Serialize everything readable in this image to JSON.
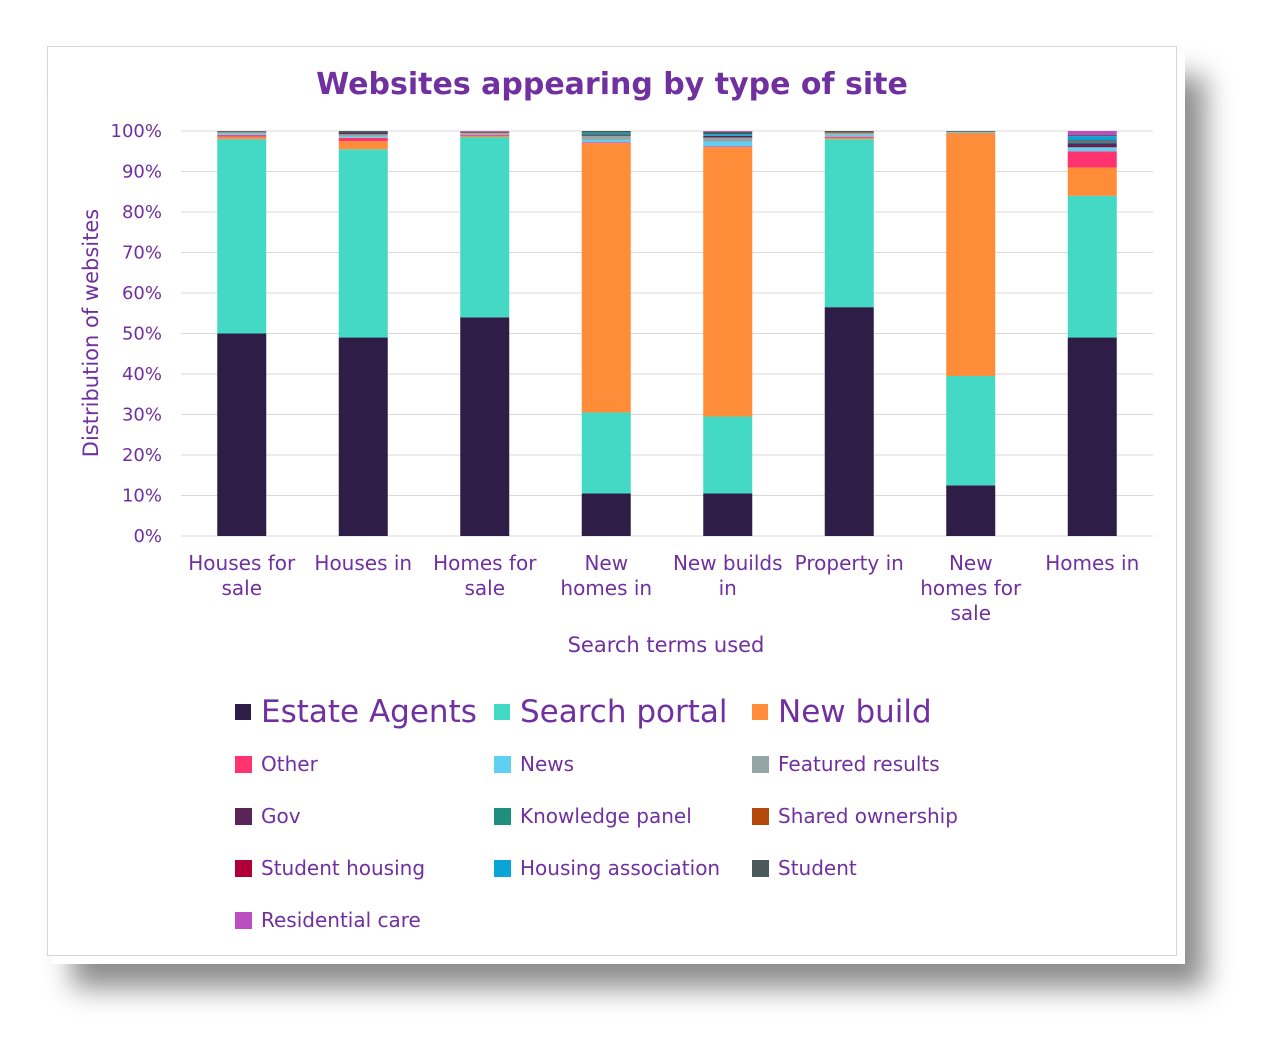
{
  "chart_data": {
    "type": "bar",
    "stacked": true,
    "title": "Websites appearing by type of site",
    "xlabel": "Search terms used",
    "ylabel": "Distribution of websites",
    "ylim": [
      0,
      100
    ],
    "yticks": [
      "0%",
      "10%",
      "20%",
      "30%",
      "40%",
      "50%",
      "60%",
      "70%",
      "80%",
      "90%",
      "100%"
    ],
    "grid": true,
    "legend_position": "bottom",
    "categories": [
      [
        "Houses for",
        "sale"
      ],
      [
        "Houses in"
      ],
      [
        "Homes for",
        "sale"
      ],
      [
        "New",
        "homes in"
      ],
      [
        "New builds",
        "in"
      ],
      [
        "Property in"
      ],
      [
        "New",
        "homes for",
        "sale"
      ],
      [
        "Homes in"
      ]
    ],
    "series": [
      {
        "name": "Estate Agents",
        "color": "#2e1d47",
        "legend": "big",
        "values": [
          50,
          49,
          54,
          10.5,
          10.5,
          56.5,
          12.5,
          49
        ]
      },
      {
        "name": "Search portal",
        "color": "#43d9c4",
        "legend": "big",
        "values": [
          48,
          46.5,
          44.5,
          20,
          19,
          41.5,
          27,
          35
        ]
      },
      {
        "name": "New build",
        "color": "#ff8c38",
        "legend": "big",
        "values": [
          0.6,
          2,
          0.3,
          66.5,
          66.5,
          0.3,
          60,
          7
        ]
      },
      {
        "name": "Other",
        "color": "#ff3370",
        "legend": "small",
        "values": [
          0.4,
          0.8,
          0.3,
          0.2,
          0.2,
          0.3,
          0,
          4
        ]
      },
      {
        "name": "News",
        "color": "#5fd0f2",
        "legend": "small",
        "values": [
          0.5,
          0.3,
          0.2,
          0.6,
          1.2,
          0.5,
          0.2,
          0.8
        ]
      },
      {
        "name": "Featured results",
        "color": "#95a5a6",
        "legend": "small",
        "values": [
          0.2,
          0.6,
          0.2,
          1,
          1,
          0.4,
          0.1,
          0.2
        ]
      },
      {
        "name": "Gov",
        "color": "#5b2458",
        "legend": "small",
        "values": [
          0,
          0.3,
          0,
          0.2,
          0.4,
          0,
          0,
          1
        ]
      },
      {
        "name": "Knowledge panel",
        "color": "#1e8f7e",
        "legend": "small",
        "values": [
          0,
          0,
          0,
          0.4,
          0,
          0,
          0,
          0.5
        ]
      },
      {
        "name": "Shared ownership",
        "color": "#b5490b",
        "legend": "small",
        "values": [
          0.1,
          0,
          0.1,
          0,
          0,
          0.2,
          0,
          0
        ]
      },
      {
        "name": "Student housing",
        "color": "#b0003a",
        "legend": "small",
        "values": [
          0,
          0,
          0,
          0,
          0,
          0,
          0,
          0.2
        ]
      },
      {
        "name": "Housing association",
        "color": "#0aa4d6",
        "legend": "small",
        "values": [
          0,
          0,
          0,
          0.2,
          0.4,
          0,
          0,
          1
        ]
      },
      {
        "name": "Student",
        "color": "#4a5a5a",
        "legend": "small",
        "values": [
          0.2,
          0.5,
          0.2,
          0.4,
          0.6,
          0.3,
          0.2,
          0.3
        ]
      },
      {
        "name": "Residential care",
        "color": "#bb4fbf",
        "legend": "small",
        "values": [
          0,
          0,
          0.2,
          0,
          0.2,
          0,
          0,
          1
        ]
      }
    ]
  }
}
